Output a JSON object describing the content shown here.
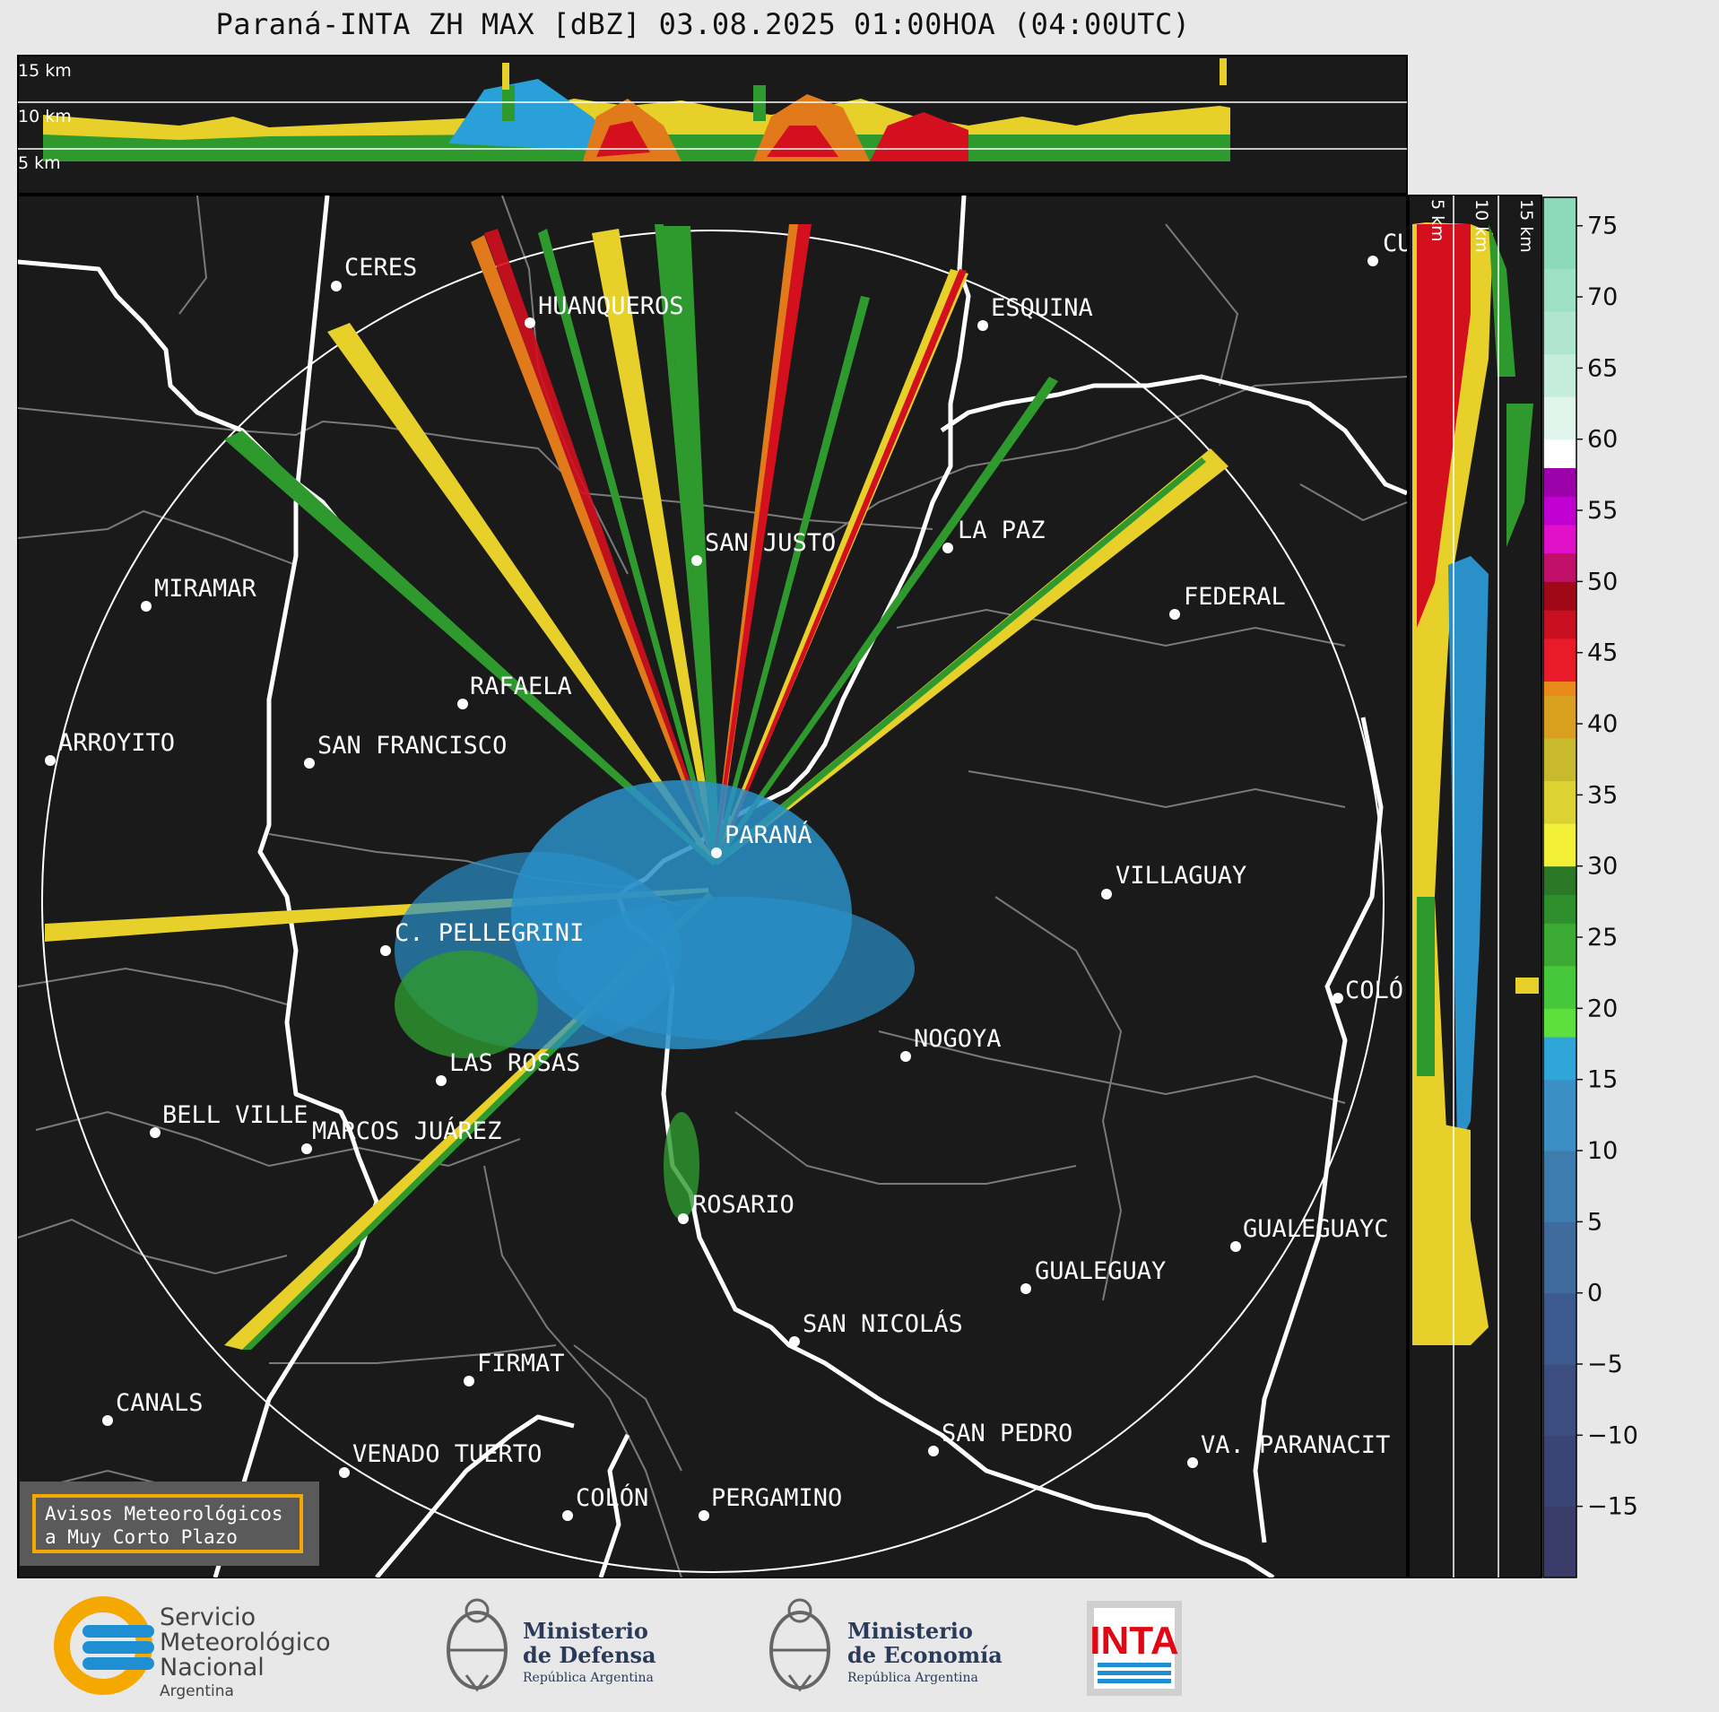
{
  "title": "Paraná-INTA ZH MAX [dBZ] 03.08.2025 01:00HOA (04:00UTC)",
  "top_panel_heights": [
    "15 km",
    "10 km",
    "5 km"
  ],
  "side_panel_heights": [
    "5 km",
    "10 km",
    "15 km"
  ],
  "cities": [
    {
      "name": "CERES"
    },
    {
      "name": "HUANQUEROS"
    },
    {
      "name": "ESQUINA"
    },
    {
      "name": "CU"
    },
    {
      "name": "SAN JUSTO"
    },
    {
      "name": "LA PAZ"
    },
    {
      "name": "MIRAMAR"
    },
    {
      "name": "FEDERAL"
    },
    {
      "name": "RAFAELA"
    },
    {
      "name": "ARROYITO"
    },
    {
      "name": "SAN FRANCISCO"
    },
    {
      "name": "PARANÁ"
    },
    {
      "name": "VILLAGUAY"
    },
    {
      "name": "C. PELLEGRINI"
    },
    {
      "name": "COLÓ"
    },
    {
      "name": "NOGOYA"
    },
    {
      "name": "LAS ROSAS"
    },
    {
      "name": "BELL VILLE"
    },
    {
      "name": "MARCOS JUÁREZ"
    },
    {
      "name": "ROSARIO"
    },
    {
      "name": "GUALEGUAYC"
    },
    {
      "name": "GUALEGUAY"
    },
    {
      "name": "SAN NICOLÁS"
    },
    {
      "name": "FIRMAT"
    },
    {
      "name": "CANALS"
    },
    {
      "name": "SAN PEDRO"
    },
    {
      "name": "VENADO TUERTO"
    },
    {
      "name": "VA. PARANACIT"
    },
    {
      "name": "COLÓN"
    },
    {
      "name": "PERGAMINO"
    }
  ],
  "colorbar": {
    "ticks": [
      "75",
      "70",
      "65",
      "60",
      "55",
      "50",
      "45",
      "40",
      "35",
      "30",
      "25",
      "20",
      "15",
      "10",
      "5",
      "0",
      "−5",
      "−10",
      "−15"
    ],
    "min": -20,
    "max": 77,
    "unit": "dBZ"
  },
  "legend_box": {
    "line1": "Avisos Meteorológicos",
    "line2": "a Muy Corto Plazo"
  },
  "logos": {
    "smn": {
      "line1": "Servicio",
      "line2": "Meteorológico",
      "line3": "Nacional",
      "line4": "Argentina"
    },
    "defensa": {
      "line1": "Ministerio",
      "line2": "de Defensa",
      "line3": "República Argentina"
    },
    "economia": {
      "line1": "Ministerio",
      "line2": "de Economía",
      "line3": "República Argentina"
    },
    "inta": {
      "text": "INTA"
    }
  },
  "colors": {
    "background": "#1a1a1a",
    "boundary": "#7a7a7a",
    "river": "#ffffff",
    "accent_orange": "#f5a800",
    "inta_red": "#e30613",
    "smn_blue": "#1f8fd4"
  }
}
